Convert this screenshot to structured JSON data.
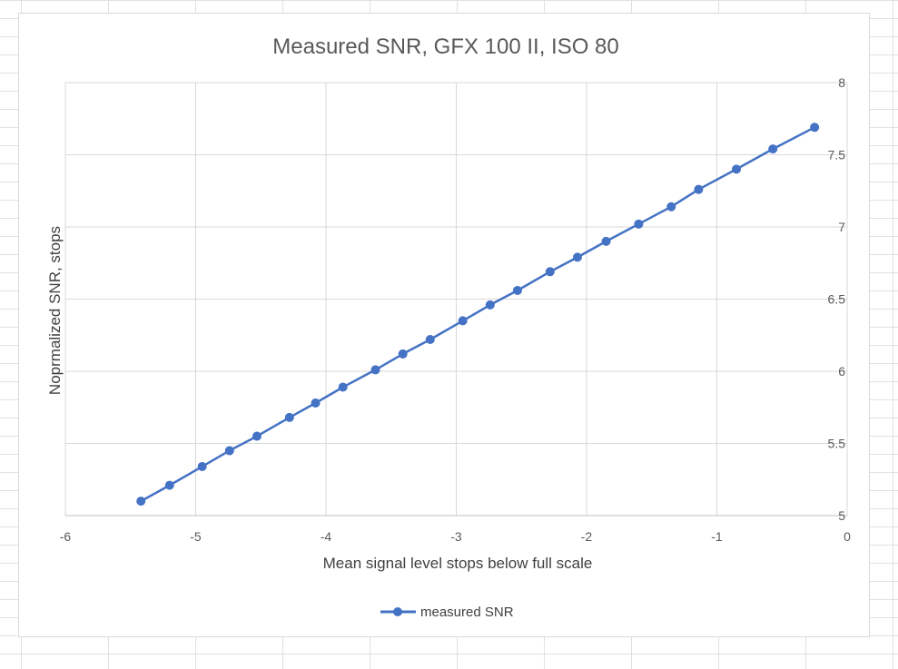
{
  "chart_data": {
    "type": "line",
    "title": "Measured SNR, GFX 100 II, ISO 80",
    "xlabel": "Mean signal level stops below full scale",
    "ylabel": "Noprmalized SNR, stops",
    "xlim": [
      -6,
      0
    ],
    "ylim": [
      5,
      8
    ],
    "x_ticks": [
      -6,
      -5,
      -4,
      -3,
      -2,
      -1,
      0
    ],
    "y_ticks": [
      5,
      5.5,
      6,
      6.5,
      7,
      7.5,
      8
    ],
    "x_tick_labels": [
      "-6",
      "-5",
      "-4",
      "-3",
      "-2",
      "-1",
      "0"
    ],
    "y_tick_labels": [
      "5",
      "5.5",
      "6",
      "6.5",
      "7",
      "7.5",
      "8"
    ],
    "y_axis_side": "right",
    "grid": true,
    "legend_position": "bottom",
    "series": [
      {
        "name": "measured SNR",
        "color": "#4472c4",
        "x": [
          -5.42,
          -5.2,
          -4.95,
          -4.74,
          -4.53,
          -4.28,
          -4.08,
          -3.87,
          -3.62,
          -3.41,
          -3.2,
          -2.95,
          -2.74,
          -2.53,
          -2.28,
          -2.07,
          -1.85,
          -1.6,
          -1.35,
          -1.14,
          -0.85,
          -0.57,
          -0.25
        ],
        "y": [
          5.1,
          5.21,
          5.34,
          5.45,
          5.55,
          5.68,
          5.78,
          5.89,
          6.01,
          6.12,
          6.22,
          6.35,
          6.46,
          6.56,
          6.69,
          6.79,
          6.9,
          7.02,
          7.14,
          7.26,
          7.4,
          7.54,
          7.69
        ]
      }
    ]
  }
}
